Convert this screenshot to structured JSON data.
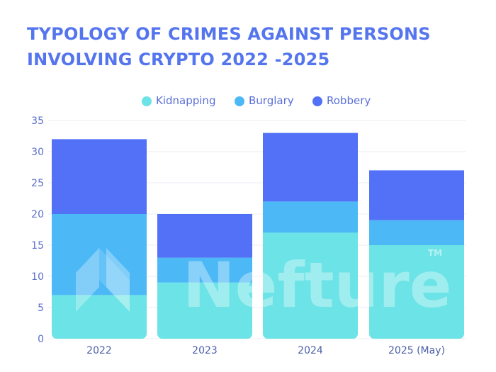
{
  "chart_data": {
    "type": "bar",
    "stacked": true,
    "title_lines": [
      "TYPOLOGY OF CRIMES AGAINST PERSONS",
      "INVOLVING CRYPTO 2022 -2025"
    ],
    "categories": [
      "2022",
      "2023",
      "2024",
      "2025 (May)"
    ],
    "series": [
      {
        "name": "Kidnapping",
        "color": "#6ce3e6",
        "values": [
          7,
          9,
          17,
          15
        ]
      },
      {
        "name": "Burglary",
        "color": "#4cb9f6",
        "values": [
          13,
          4,
          5,
          4
        ]
      },
      {
        "name": "Robbery",
        "color": "#5271f6",
        "values": [
          12,
          7,
          11,
          8
        ]
      }
    ],
    "ylim": [
      0,
      35
    ],
    "yticks": [
      0,
      5,
      10,
      15,
      20,
      25,
      30,
      35
    ],
    "grid": true,
    "legend_position": "top-center"
  },
  "watermark": {
    "text": "Nefture",
    "tm": "TM"
  }
}
